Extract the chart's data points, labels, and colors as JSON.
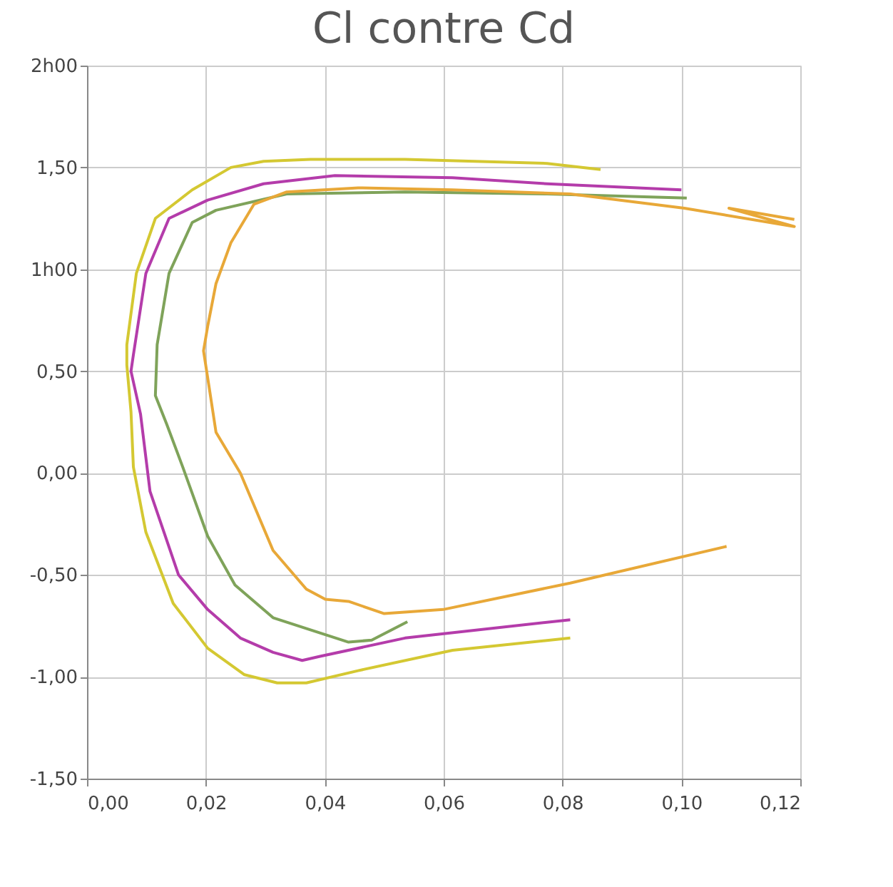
{
  "chart_data": {
    "type": "line",
    "title": "Cl contre Cd",
    "xlim": [
      0,
      0.12
    ],
    "xticks": [
      {
        "value": 0,
        "label": "0,00"
      },
      {
        "value": 0.02,
        "label": "0,02"
      },
      {
        "value": 0.04,
        "label": "0,04"
      },
      {
        "value": 0.06,
        "label": "0,06"
      },
      {
        "value": 0.08,
        "label": "0,08"
      },
      {
        "value": 0.1,
        "label": "0,10"
      },
      {
        "value": 0.12,
        "label": "0,12"
      }
    ],
    "ylim": [
      -1.5,
      2
    ],
    "yticks": [
      {
        "value": -1.5,
        "label": "-1,50"
      },
      {
        "value": -1,
        "label": "-1,00"
      },
      {
        "value": -0.5,
        "label": "-0,50"
      },
      {
        "value": 0,
        "label": "0,00"
      },
      {
        "value": 0.5,
        "label": "0,50"
      },
      {
        "value": 1,
        "label": "1h00"
      },
      {
        "value": 1.5,
        "label": "1,50"
      },
      {
        "value": 2,
        "label": "2h00"
      }
    ],
    "grid": true,
    "legend": false,
    "marker": "none",
    "line_style": "solid",
    "series": [
      {
        "color": "#d4c832",
        "x": [
          0.0864,
          0.0774,
          0.0535,
          0.0376,
          0.0297,
          0.0242,
          0.0177,
          0.0115,
          0.0083,
          0.0067,
          0.0067,
          0.0074,
          0.0078,
          0.0099,
          0.0145,
          0.0203,
          0.0265,
          0.032,
          0.0369,
          0.0456,
          0.0615,
          0.0813
        ],
        "values": [
          1.49,
          1.52,
          1.54,
          1.54,
          1.53,
          1.5,
          1.39,
          1.25,
          0.98,
          0.63,
          0.53,
          0.3,
          0.03,
          -0.29,
          -0.64,
          -0.86,
          -0.99,
          -1.03,
          -1.03,
          -0.97,
          -0.87,
          -0.81
        ]
      },
      {
        "color": "#b43caa",
        "x": [
          0.1,
          0.0774,
          0.0615,
          0.0417,
          0.0297,
          0.0203,
          0.0138,
          0.0099,
          0.0078,
          0.0074,
          0.009,
          0.0106,
          0.0154,
          0.0203,
          0.0258,
          0.0313,
          0.0362,
          0.0392,
          0.0535,
          0.0813
        ],
        "values": [
          1.39,
          1.42,
          1.45,
          1.46,
          1.42,
          1.34,
          1.25,
          0.98,
          0.58,
          0.5,
          0.29,
          -0.09,
          -0.5,
          -0.67,
          -0.81,
          -0.88,
          -0.92,
          -0.9,
          -0.81,
          -0.72
        ]
      },
      {
        "color": "#7fa35a",
        "x": [
          0.1009,
          0.0774,
          0.0535,
          0.0336,
          0.0217,
          0.0177,
          0.0138,
          0.0118,
          0.0115,
          0.0134,
          0.0161,
          0.0203,
          0.0249,
          0.0313,
          0.0376,
          0.044,
          0.0479,
          0.0539
        ],
        "values": [
          1.35,
          1.37,
          1.38,
          1.37,
          1.29,
          1.23,
          0.98,
          0.63,
          0.38,
          0.24,
          0.03,
          -0.31,
          -0.55,
          -0.71,
          -0.77,
          -0.83,
          -0.82,
          -0.73
        ]
      },
      {
        "color": "#e8a838",
        "x": [
          0.1076,
          0.0813,
          0.0599,
          0.05,
          0.044,
          0.0401,
          0.0369,
          0.0313,
          0.0258,
          0.0217,
          0.0205,
          0.0196,
          0.0203,
          0.0217,
          0.0242,
          0.0281,
          0.0336,
          0.0456,
          0.0615,
          0.0813,
          0.1005,
          0.119,
          0.108,
          0.119
        ],
        "values": [
          -0.36,
          -0.54,
          -0.67,
          -0.69,
          -0.63,
          -0.62,
          -0.57,
          -0.38,
          0.0,
          0.2,
          0.43,
          0.6,
          0.72,
          0.93,
          1.13,
          1.32,
          1.38,
          1.4,
          1.39,
          1.37,
          1.3,
          1.21,
          1.3,
          1.245
        ]
      }
    ]
  }
}
